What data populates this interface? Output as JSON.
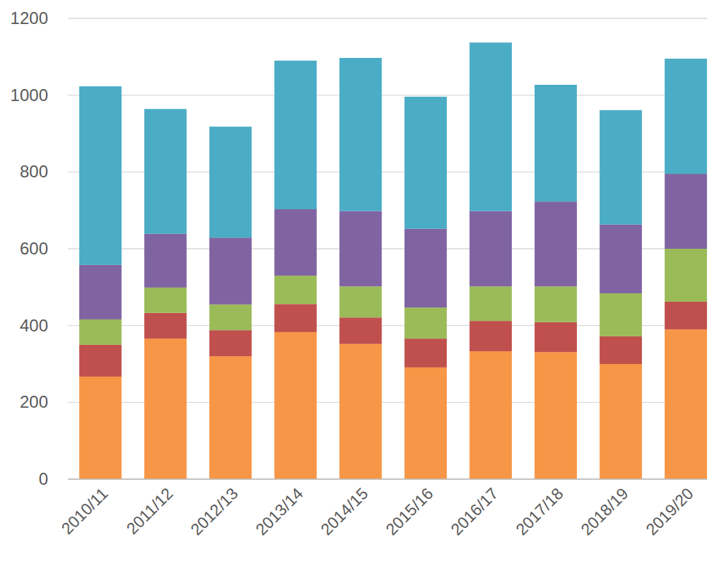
{
  "chart_data": {
    "type": "bar",
    "stacked": true,
    "grid": true,
    "categories": [
      "2010/11",
      "2011/12",
      "2012/13",
      "2013/14",
      "2014/15",
      "2015/16",
      "2016/17",
      "2017/18",
      "2018/19",
      "2019/20"
    ],
    "series": [
      {
        "color": "#f79646",
        "values": [
          267,
          366,
          320,
          383,
          352,
          291,
          333,
          331,
          300,
          390
        ]
      },
      {
        "color": "#c0504d",
        "values": [
          83,
          67,
          68,
          73,
          69,
          75,
          79,
          78,
          72,
          72
        ]
      },
      {
        "color": "#9bbb59",
        "values": [
          66,
          66,
          67,
          74,
          81,
          81,
          90,
          93,
          112,
          138
        ]
      },
      {
        "color": "#8064a2",
        "values": [
          142,
          140,
          174,
          173,
          196,
          205,
          196,
          221,
          179,
          195
        ]
      },
      {
        "color": "#4bacc6",
        "values": [
          465,
          325,
          289,
          387,
          399,
          344,
          439,
          304,
          298,
          300
        ]
      }
    ],
    "ylim": [
      0,
      1200
    ],
    "yticks": [
      0,
      200,
      400,
      600,
      800,
      1000,
      1200
    ]
  }
}
